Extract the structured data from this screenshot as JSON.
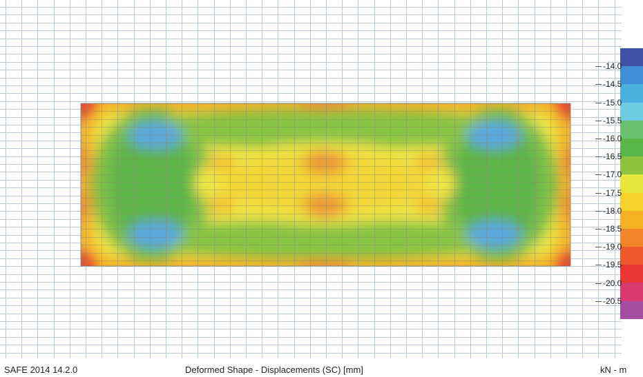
{
  "view": {
    "contour_levels": [
      "-14.0",
      "-14.5",
      "-15.0",
      "-15.5",
      "-16.0",
      "-16.5",
      "-17.0",
      "-17.5",
      "-18.0",
      "-18.5",
      "-19.0",
      "-19.5",
      "-20.0",
      "-20.5"
    ],
    "legend_colors": [
      "#3f51a6",
      "#3e8fd6",
      "#4ab0e0",
      "#6ccbe0",
      "#6cc070",
      "#58b548",
      "#8cc43f",
      "#e8e53a",
      "#f4d42a",
      "#f5b024",
      "#f1862a",
      "#ee5a2c",
      "#e83535",
      "#d83a70",
      "#a34ea0"
    ],
    "slab_color_center": "#f0c030",
    "hotspot_color": "#e8873a"
  },
  "status_bar": {
    "left": "SAFE 2014 14.2.0",
    "center": "Deformed Shape - Displacements (SC)  [mm]",
    "right": "kN - m"
  }
}
